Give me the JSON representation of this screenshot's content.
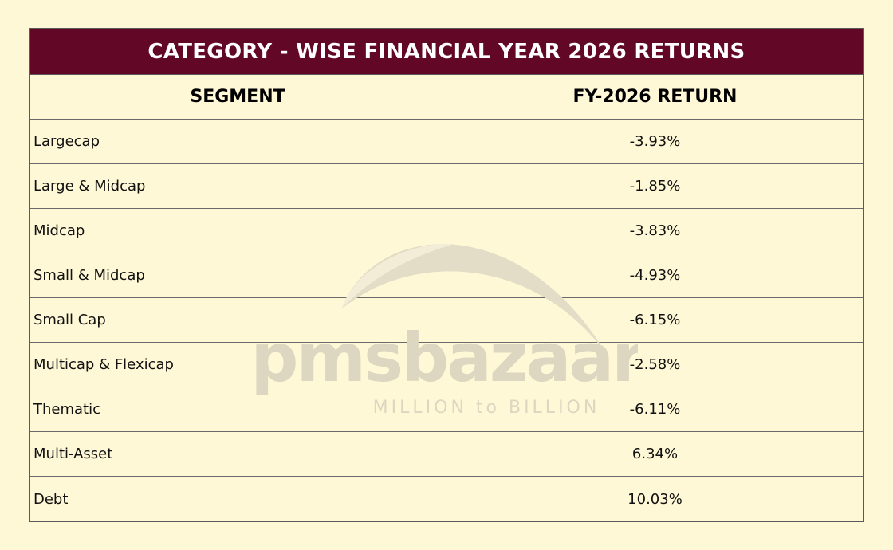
{
  "title": "CATEGORY - WISE FINANCIAL YEAR 2026 RETURNS",
  "columns": [
    "SEGMENT",
    "FY-2026 RETURN"
  ],
  "rows": [
    {
      "segment": "Largecap",
      "return": "-3.93%"
    },
    {
      "segment": "Large & Midcap",
      "return": "-1.85%"
    },
    {
      "segment": "Midcap",
      "return": "-3.83%"
    },
    {
      "segment": "Small & Midcap",
      "return": "-4.93%"
    },
    {
      "segment": "Small Cap",
      "return": "-6.15%"
    },
    {
      "segment": "Multicap & Flexicap",
      "return": "-2.58%"
    },
    {
      "segment": "Thematic",
      "return": "-6.11%"
    },
    {
      "segment": "Multi-Asset",
      "return": "6.34%"
    },
    {
      "segment": "Debt",
      "return": "10.03%"
    }
  ],
  "watermark": {
    "brand": "pmsbazaar",
    "tagline": "MILLION to BILLION"
  },
  "colors": {
    "title_bar": "#620726",
    "background": "#fff8d6",
    "border": "#6a6a6a",
    "watermark": "#d9d2bd"
  },
  "chart_data": {
    "type": "table",
    "title": "CATEGORY - WISE FINANCIAL YEAR 2026 RETURNS",
    "columns": [
      "SEGMENT",
      "FY-2026 RETURN"
    ],
    "categories": [
      "Largecap",
      "Large & Midcap",
      "Midcap",
      "Small & Midcap",
      "Small Cap",
      "Multicap & Flexicap",
      "Thematic",
      "Multi-Asset",
      "Debt"
    ],
    "values": [
      -3.93,
      -1.85,
      -3.83,
      -4.93,
      -6.15,
      -2.58,
      -6.11,
      6.34,
      10.03
    ]
  }
}
